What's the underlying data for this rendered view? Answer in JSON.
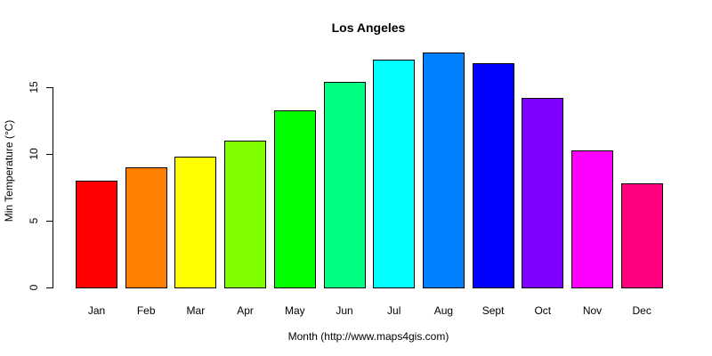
{
  "chart_data": {
    "type": "bar",
    "title": "Los Angeles",
    "xlabel": "Month (http://www.maps4gis.com)",
    "ylabel": "Min Temperature (°C)",
    "categories": [
      "Jan",
      "Feb",
      "Mar",
      "Apr",
      "May",
      "Jun",
      "Jul",
      "Aug",
      "Sept",
      "Oct",
      "Nov",
      "Dec"
    ],
    "values": [
      8.0,
      9.0,
      9.8,
      11.0,
      13.3,
      15.4,
      17.1,
      17.6,
      16.8,
      14.2,
      10.3,
      7.8
    ],
    "colors": [
      "#FF0000",
      "#FF8000",
      "#FFFF00",
      "#80FF00",
      "#00FF00",
      "#00FF80",
      "#00FFFF",
      "#0080FF",
      "#0000FF",
      "#8000FF",
      "#FF00FF",
      "#FF0080"
    ],
    "yticks": [
      0,
      5,
      10,
      15
    ],
    "ylim": [
      0,
      17.6
    ],
    "grid": false,
    "legend": null
  }
}
